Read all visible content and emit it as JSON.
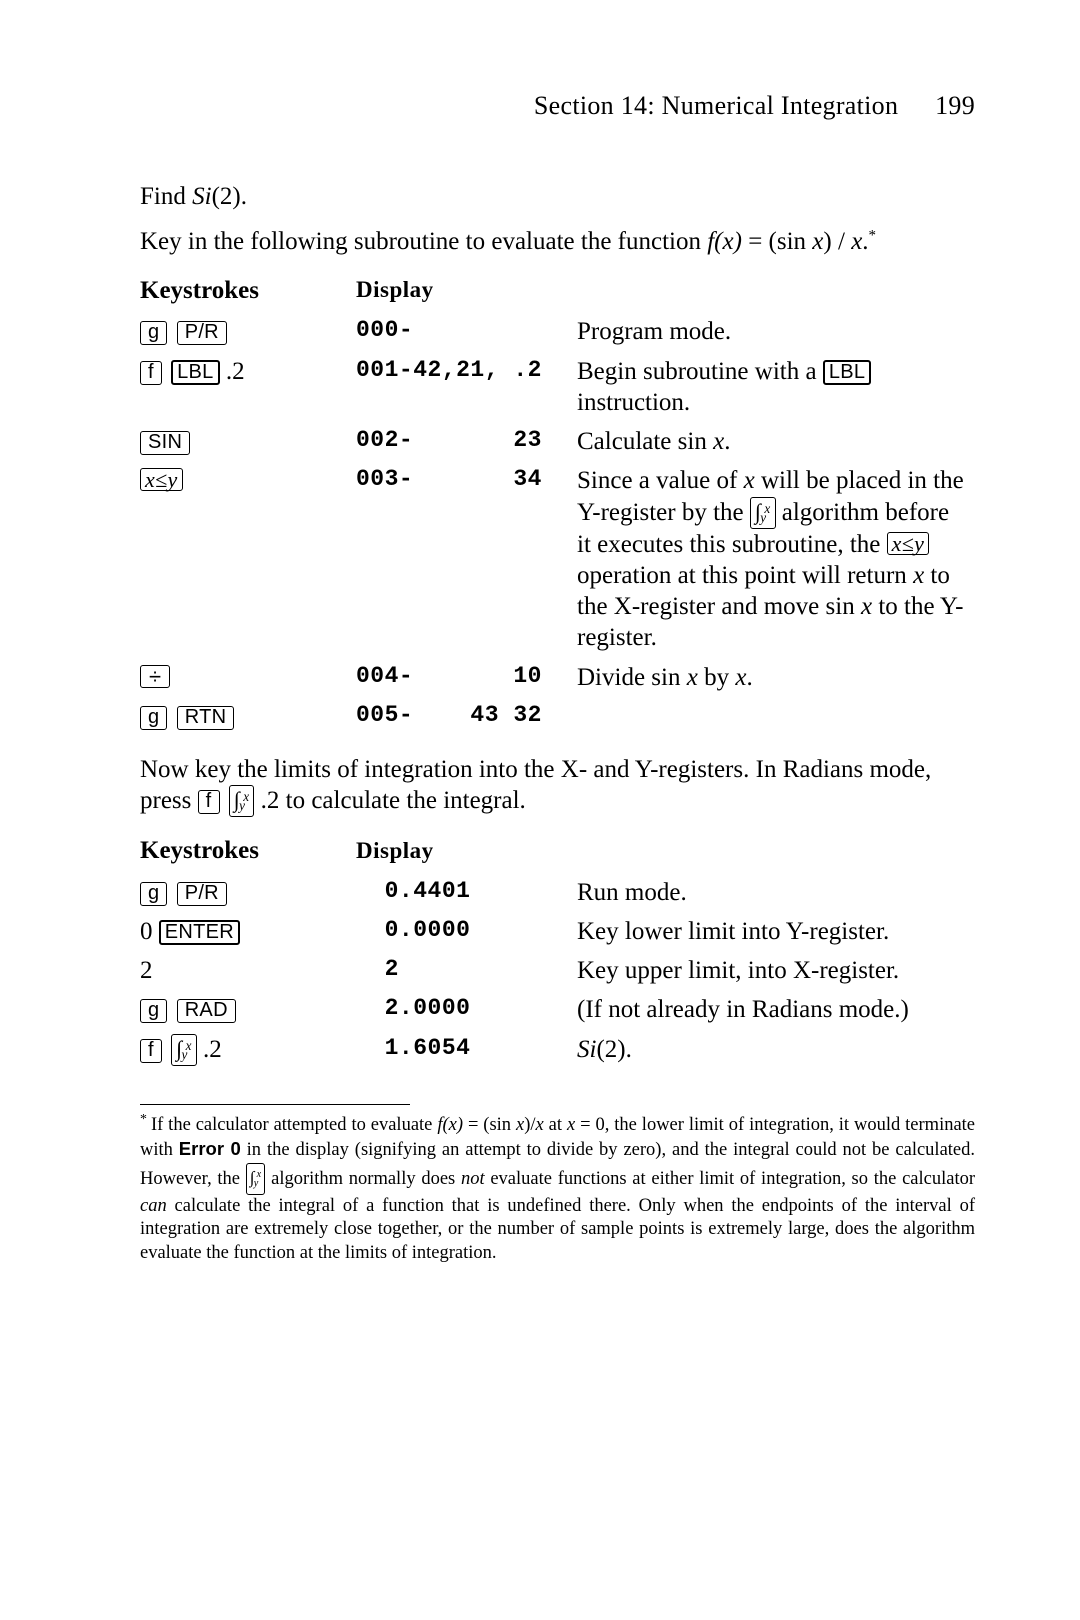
{
  "header": {
    "section_label": "Section 14: Numerical Integration",
    "page_number": "199"
  },
  "intro": {
    "line1_prefix": "Find ",
    "line1_func": "Si",
    "line1_arg": "(2).",
    "line2_a": "Key in the following subroutine to evaluate the function ",
    "line2_b": "f(x)",
    "line2_c": " = (sin ",
    "line2_d": "x",
    "line2_e": ") / ",
    "line2_f": "x",
    "line2_g": ".",
    "footnote_marker": "*"
  },
  "table1": {
    "head_keystrokes": "Keystrokes",
    "head_display": "Display",
    "rows": [
      {
        "k_prefix_key": "g",
        "k_main_key": "P/R",
        "k_suffix_text": "",
        "display": "000-",
        "explain": "Program mode."
      },
      {
        "k_prefix_key": "f",
        "k_main_key": "LBL",
        "k_suffix_text": " .2",
        "display": "001-42,21, .2",
        "explain_a": "Begin subroutine with a ",
        "explain_key": "LBL",
        "explain_b": " instruction."
      },
      {
        "k_main_key": "SIN",
        "display": "002-       23",
        "explain_a": "Calculate sin ",
        "explain_ital": "x",
        "explain_b": "."
      },
      {
        "k_main_math": "x≤y",
        "display": "003-       34",
        "explain_a": "Since a value of ",
        "explain_i1": "x",
        "explain_b": " will be placed in the Y-register by the ",
        "explain_int": true,
        "explain_c": " algorithm before it executes this subroutine, the ",
        "explain_key_math": "x≤y",
        "explain_d": " operation at this point will return ",
        "explain_i2": "x",
        "explain_e": " to the X-register and move sin ",
        "explain_i3": "x",
        "explain_f": " to the Y-register."
      },
      {
        "k_sym_key": "÷",
        "display": "004-       10",
        "explain_a": "Divide sin ",
        "explain_ital": "x",
        "explain_b": " by ",
        "explain_ital2": "x",
        "explain_c": "."
      },
      {
        "k_prefix_key": "g",
        "k_main_key": "RTN",
        "display": "005-    43 32",
        "explain": ""
      }
    ]
  },
  "mid_para": {
    "a": "Now key the limits of integration into the X- and Y-registers. In Radians mode, press ",
    "key1": "f",
    "int_key": true,
    "b": " .2 to calculate the integral."
  },
  "table2": {
    "head_keystrokes": "Keystrokes",
    "head_display": "Display",
    "rows": [
      {
        "k_prefix_key": "g",
        "k_main_key": "P/R",
        "display": "  0.4401",
        "explain": "Run mode."
      },
      {
        "k_raw_prefix": "0 ",
        "k_main_key": "ENTER",
        "display": "  0.0000",
        "explain": "Key lower limit into Y-register."
      },
      {
        "k_raw_only": "2",
        "display": "  2",
        "explain": "Key upper limit, into X-register."
      },
      {
        "k_prefix_key": "g",
        "k_main_key": "RAD",
        "display": "  2.0000",
        "explain": "(If not already in Radians mode.)"
      },
      {
        "k_prefix_key": "f",
        "k_int_key": true,
        "k_suffix_text": " .2",
        "display": "  1.6054",
        "explain_ital": "Si",
        "explain_b": "(2)."
      }
    ]
  },
  "footnote": {
    "marker": "*",
    "a": "If the calculator attempted to evaluate ",
    "b": "f(x)",
    "c": " = (sin ",
    "d": "x",
    "e": ")/",
    "f": "x",
    "g": " at ",
    "h": "x",
    "i": " = 0, the lower limit of integration, it would terminate with ",
    "err": "Error 0",
    "j": " in the display (signifying an attempt to divide by zero), and the integral could not be calculated. However, the ",
    "int_key": true,
    "k": " algorithm normally does ",
    "not": "not",
    "l": " evaluate functions at either limit of integration, so the calculator ",
    "can": "can",
    "m": " calculate the integral of a function that is undefined there. Only when the endpoints of the interval of integration are extremely close together, or the number of sample points is extremely large, does the algorithm evaluate the function at the limits of integration."
  }
}
